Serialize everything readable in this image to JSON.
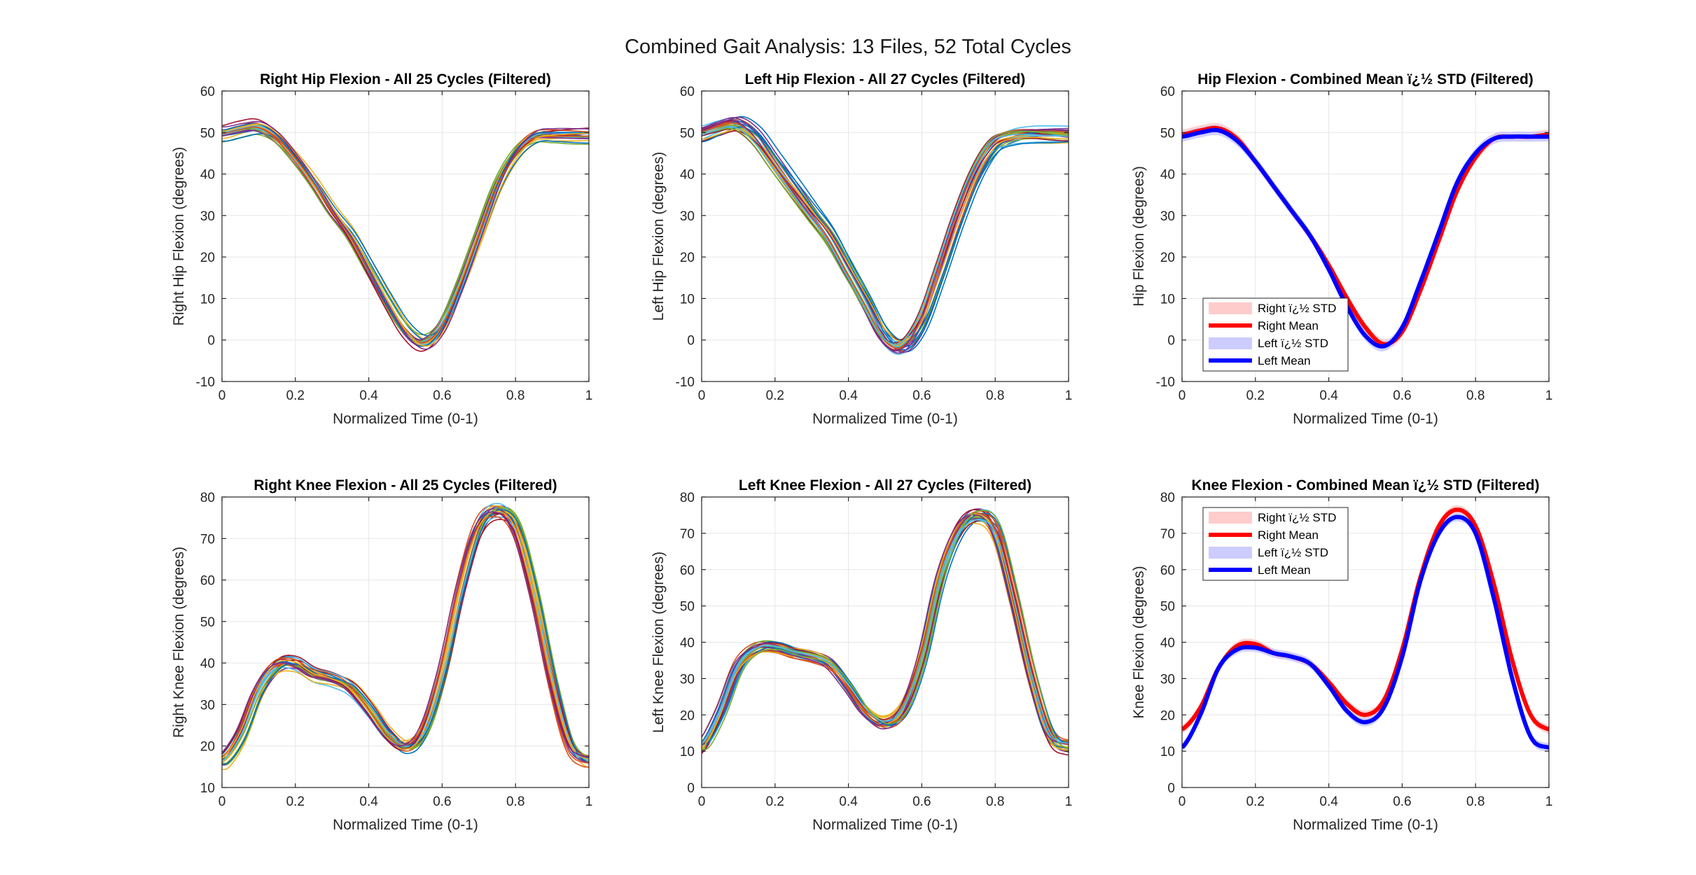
{
  "figure": {
    "title": "Combined Gait Analysis: 13 Files, 52 Total Cycles"
  },
  "chart_data": [
    {
      "type": "line",
      "title": "Right Hip Flexion - All 25 Cycles (Filtered)",
      "xlabel": "Normalized Time (0-1)",
      "ylabel": "Right Hip Flexion (degrees)",
      "xlim": [
        0,
        1
      ],
      "ylim": [
        -10,
        60
      ],
      "xticks": [
        0,
        0.2,
        0.4,
        0.6,
        0.8,
        1
      ],
      "xtick_labels": [
        "0",
        "0.2",
        "0.4",
        "0.6",
        "0.8",
        "1"
      ],
      "yticks": [
        -10,
        0,
        10,
        20,
        30,
        40,
        50,
        60
      ],
      "ytick_labels": [
        "-10",
        "0",
        "10",
        "20",
        "30",
        "40",
        "50",
        "60"
      ],
      "grid": true,
      "cycle_count": 25,
      "mean_curve": {
        "x": [
          0,
          0.05,
          0.1,
          0.15,
          0.2,
          0.25,
          0.3,
          0.35,
          0.4,
          0.45,
          0.5,
          0.55,
          0.6,
          0.65,
          0.7,
          0.75,
          0.8,
          0.85,
          0.9,
          0.95,
          1.0
        ],
        "y": [
          50,
          51,
          51.5,
          49,
          44,
          38,
          31,
          25,
          17,
          9,
          2,
          -1,
          3,
          13,
          25,
          37,
          45,
          49,
          49.5,
          49.5,
          49.5
        ]
      },
      "spread": 2.0
    },
    {
      "type": "line",
      "title": "Left Hip Flexion - All 27 Cycles (Filtered)",
      "xlabel": "Normalized Time (0-1)",
      "ylabel": "Left Hip Flexion (degrees)",
      "xlim": [
        0,
        1
      ],
      "ylim": [
        -10,
        60
      ],
      "xticks": [
        0,
        0.2,
        0.4,
        0.6,
        0.8,
        1
      ],
      "xtick_labels": [
        "0",
        "0.2",
        "0.4",
        "0.6",
        "0.8",
        "1"
      ],
      "yticks": [
        -10,
        0,
        10,
        20,
        30,
        40,
        50,
        60
      ],
      "ytick_labels": [
        "-10",
        "0",
        "10",
        "20",
        "30",
        "40",
        "50",
        "60"
      ],
      "grid": true,
      "cycle_count": 27,
      "mean_curve": {
        "x": [
          0,
          0.05,
          0.1,
          0.15,
          0.2,
          0.25,
          0.3,
          0.35,
          0.4,
          0.45,
          0.5,
          0.55,
          0.6,
          0.65,
          0.7,
          0.75,
          0.8,
          0.85,
          0.9,
          0.95,
          1.0
        ],
        "y": [
          49.5,
          51,
          52,
          49,
          43,
          37,
          31,
          25,
          17,
          9,
          1,
          -1.5,
          4,
          16,
          29,
          40,
          47,
          49,
          49.5,
          49.5,
          49.5
        ]
      },
      "spread": 2.0
    },
    {
      "type": "line",
      "title": "Hip Flexion - Combined Mean ï¿½ STD (Filtered)",
      "xlabel": "Normalized Time (0-1)",
      "ylabel": "Hip Flexion (degrees)",
      "xlim": [
        0,
        1
      ],
      "ylim": [
        -10,
        60
      ],
      "xticks": [
        0,
        0.2,
        0.4,
        0.6,
        0.8,
        1
      ],
      "xtick_labels": [
        "0",
        "0.2",
        "0.4",
        "0.6",
        "0.8",
        "1"
      ],
      "yticks": [
        -10,
        0,
        10,
        20,
        30,
        40,
        50,
        60
      ],
      "ytick_labels": [
        "-10",
        "0",
        "10",
        "20",
        "30",
        "40",
        "50",
        "60"
      ],
      "grid": true,
      "legend_position": "bottom-left",
      "series": [
        {
          "name": "Right ï¿½ STD",
          "kind": "band",
          "of": "Right Mean",
          "color": "#ffcccc",
          "std": 1.2
        },
        {
          "name": "Right Mean",
          "kind": "line",
          "color": "#ff0000",
          "x": [
            0,
            0.05,
            0.1,
            0.15,
            0.2,
            0.25,
            0.3,
            0.35,
            0.4,
            0.45,
            0.5,
            0.55,
            0.6,
            0.65,
            0.7,
            0.75,
            0.8,
            0.85,
            0.9,
            0.95,
            1.0
          ],
          "y": [
            49.5,
            50.5,
            51,
            48.5,
            43,
            37,
            31,
            25,
            18,
            10,
            3,
            -1,
            2,
            12,
            24,
            36,
            44,
            48.5,
            49,
            49,
            49.5
          ]
        },
        {
          "name": "Left ï¿½ STD",
          "kind": "band",
          "of": "Left Mean",
          "color": "#ccccff",
          "std": 1.2
        },
        {
          "name": "Left Mean",
          "kind": "line",
          "color": "#0000ff",
          "x": [
            0,
            0.05,
            0.1,
            0.15,
            0.2,
            0.25,
            0.3,
            0.35,
            0.4,
            0.45,
            0.5,
            0.55,
            0.6,
            0.65,
            0.7,
            0.75,
            0.8,
            0.85,
            0.9,
            0.95,
            1.0
          ],
          "y": [
            49,
            50,
            50.5,
            48,
            43,
            37,
            31,
            25,
            17,
            8,
            1,
            -1.5,
            3,
            14,
            26,
            38,
            45,
            48.5,
            49,
            49,
            49
          ]
        }
      ]
    },
    {
      "type": "line",
      "title": "Right Knee Flexion - All 25 Cycles (Filtered)",
      "xlabel": "Normalized Time (0-1)",
      "ylabel": "Right Knee Flexion (degrees)",
      "xlim": [
        0,
        1
      ],
      "ylim": [
        10,
        80
      ],
      "xticks": [
        0,
        0.2,
        0.4,
        0.6,
        0.8,
        1
      ],
      "xtick_labels": [
        "0",
        "0.2",
        "0.4",
        "0.6",
        "0.8",
        "1"
      ],
      "yticks": [
        10,
        20,
        30,
        40,
        50,
        60,
        70,
        80
      ],
      "ytick_labels": [
        "10",
        "20",
        "30",
        "40",
        "50",
        "60",
        "70",
        "80"
      ],
      "grid": true,
      "cycle_count": 25,
      "mean_curve": {
        "x": [
          0,
          0.05,
          0.1,
          0.15,
          0.2,
          0.25,
          0.3,
          0.35,
          0.4,
          0.45,
          0.5,
          0.55,
          0.6,
          0.65,
          0.7,
          0.75,
          0.8,
          0.85,
          0.9,
          0.95,
          1.0
        ],
        "y": [
          16,
          22,
          33,
          39,
          39.5,
          37,
          36,
          34,
          29,
          23,
          20,
          24,
          38,
          58,
          73,
          77,
          73,
          57,
          36,
          20,
          16
        ]
      },
      "spread": 2.0
    },
    {
      "type": "line",
      "title": "Left Knee Flexion - All 27 Cycles (Filtered)",
      "xlabel": "Normalized Time (0-1)",
      "ylabel": "Left Knee Flexion (degrees)",
      "xlim": [
        0,
        1
      ],
      "ylim": [
        0,
        80
      ],
      "xticks": [
        0,
        0.2,
        0.4,
        0.6,
        0.8,
        1
      ],
      "xtick_labels": [
        "0",
        "0.2",
        "0.4",
        "0.6",
        "0.8",
        "1"
      ],
      "yticks": [
        0,
        10,
        20,
        30,
        40,
        50,
        60,
        70,
        80
      ],
      "ytick_labels": [
        "0",
        "10",
        "20",
        "30",
        "40",
        "50",
        "60",
        "70",
        "80"
      ],
      "grid": true,
      "cycle_count": 27,
      "mean_curve": {
        "x": [
          0,
          0.05,
          0.1,
          0.15,
          0.2,
          0.25,
          0.3,
          0.35,
          0.4,
          0.45,
          0.5,
          0.55,
          0.6,
          0.65,
          0.7,
          0.75,
          0.8,
          0.85,
          0.9,
          0.95,
          1.0
        ],
        "y": [
          11,
          20,
          33,
          38,
          38.5,
          37,
          36,
          34,
          28,
          21,
          18,
          22,
          36,
          58,
          71,
          75,
          71,
          52,
          30,
          14,
          11
        ]
      },
      "spread": 2.0
    },
    {
      "type": "line",
      "title": "Knee Flexion - Combined Mean ï¿½ STD (Filtered)",
      "xlabel": "Normalized Time (0-1)",
      "ylabel": "Knee Flexion (degrees)",
      "xlim": [
        0,
        1
      ],
      "ylim": [
        0,
        80
      ],
      "xticks": [
        0,
        0.2,
        0.4,
        0.6,
        0.8,
        1
      ],
      "xtick_labels": [
        "0",
        "0.2",
        "0.4",
        "0.6",
        "0.8",
        "1"
      ],
      "yticks": [
        0,
        10,
        20,
        30,
        40,
        50,
        60,
        70,
        80
      ],
      "ytick_labels": [
        "0",
        "10",
        "20",
        "30",
        "40",
        "50",
        "60",
        "70",
        "80"
      ],
      "grid": true,
      "legend_position": "top-left",
      "series": [
        {
          "name": "Right ï¿½ STD",
          "kind": "band",
          "of": "Right Mean",
          "color": "#ffcccc",
          "std": 1.2
        },
        {
          "name": "Right Mean",
          "kind": "line",
          "color": "#ff0000",
          "x": [
            0,
            0.05,
            0.1,
            0.15,
            0.2,
            0.25,
            0.3,
            0.35,
            0.4,
            0.45,
            0.5,
            0.55,
            0.6,
            0.65,
            0.7,
            0.75,
            0.8,
            0.85,
            0.9,
            0.95,
            1.0
          ],
          "y": [
            16,
            22,
            33,
            39,
            39.5,
            37,
            36,
            34,
            29,
            23,
            20,
            24,
            38,
            58,
            72,
            76.5,
            72,
            56,
            35,
            20,
            16
          ]
        },
        {
          "name": "Left ï¿½ STD",
          "kind": "band",
          "of": "Left Mean",
          "color": "#ccccff",
          "std": 1.2
        },
        {
          "name": "Left Mean",
          "kind": "line",
          "color": "#0000ff",
          "x": [
            0,
            0.05,
            0.1,
            0.15,
            0.2,
            0.25,
            0.3,
            0.35,
            0.4,
            0.45,
            0.5,
            0.55,
            0.6,
            0.65,
            0.7,
            0.75,
            0.8,
            0.85,
            0.9,
            0.95,
            1.0
          ],
          "y": [
            11,
            20,
            33,
            38,
            38.5,
            37,
            36,
            34,
            28,
            21,
            18,
            22,
            36,
            57,
            70,
            74.5,
            70,
            52,
            30,
            14,
            11
          ]
        }
      ]
    }
  ],
  "colors": {
    "cycle_palette": [
      "#0072bd",
      "#d95319",
      "#edb120",
      "#7e2f8e",
      "#77ac30",
      "#4dbeee",
      "#a2142f"
    ],
    "grid": "#e6e6e6",
    "axes": "#262626"
  }
}
